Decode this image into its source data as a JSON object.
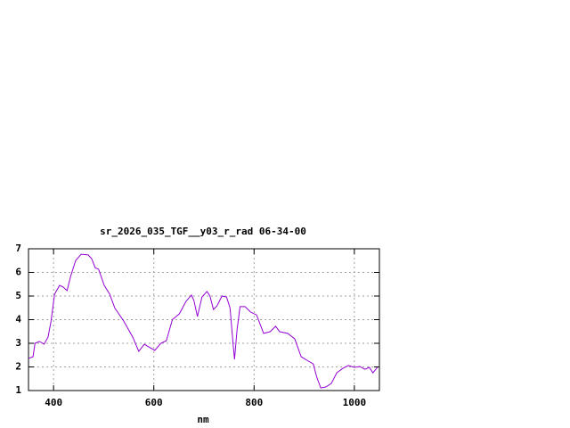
{
  "chart_data": {
    "type": "line",
    "title": "sr_2026_035_TGF__y03_r_rad 06-34-00",
    "x_label": "nm",
    "xlim": [
      350,
      1050
    ],
    "xticks": [
      400,
      600,
      800,
      1000
    ],
    "ylim": [
      1,
      7
    ],
    "yticks": [
      1,
      2,
      3,
      4,
      5,
      6,
      7
    ],
    "grid": true,
    "series": [
      {
        "color": "#9400d3",
        "x": [
          350,
          359,
          363,
          372,
          381,
          389,
          395,
          402,
          412,
          419,
          427,
          434,
          444,
          455,
          469,
          476,
          483,
          490,
          501,
          512,
          522,
          540,
          558,
          570,
          581,
          593,
          602,
          614,
          625,
          637,
          651,
          664,
          675,
          680,
          687,
          696,
          706,
          712,
          719,
          726,
          736,
          745,
          752,
          758,
          761,
          766,
          772,
          782,
          793,
          805,
          819,
          832,
          843,
          851,
          867,
          881,
          894,
          908,
          918,
          925,
          933,
          943,
          954,
          965,
          977,
          988,
          1000,
          1011,
          1021,
          1030,
          1037,
          1046
        ],
        "values": [
          2.36,
          2.43,
          3.0,
          3.08,
          2.96,
          3.26,
          3.94,
          5.08,
          5.45,
          5.38,
          5.23,
          5.83,
          6.5,
          6.77,
          6.74,
          6.58,
          6.2,
          6.13,
          5.45,
          5.08,
          4.5,
          3.94,
          3.26,
          2.66,
          2.96,
          2.81,
          2.7,
          3.0,
          3.11,
          4.0,
          4.25,
          4.77,
          5.04,
          4.81,
          4.13,
          4.96,
          5.19,
          5.0,
          4.43,
          4.58,
          5.0,
          4.96,
          4.5,
          3.0,
          2.32,
          3.57,
          4.55,
          4.55,
          4.32,
          4.2,
          3.42,
          3.49,
          3.72,
          3.49,
          3.42,
          3.19,
          2.43,
          2.25,
          2.13,
          1.57,
          1.11,
          1.15,
          1.3,
          1.75,
          1.94,
          2.06,
          1.98,
          2.02,
          1.9,
          1.98,
          1.75,
          1.98
        ]
      }
    ]
  }
}
